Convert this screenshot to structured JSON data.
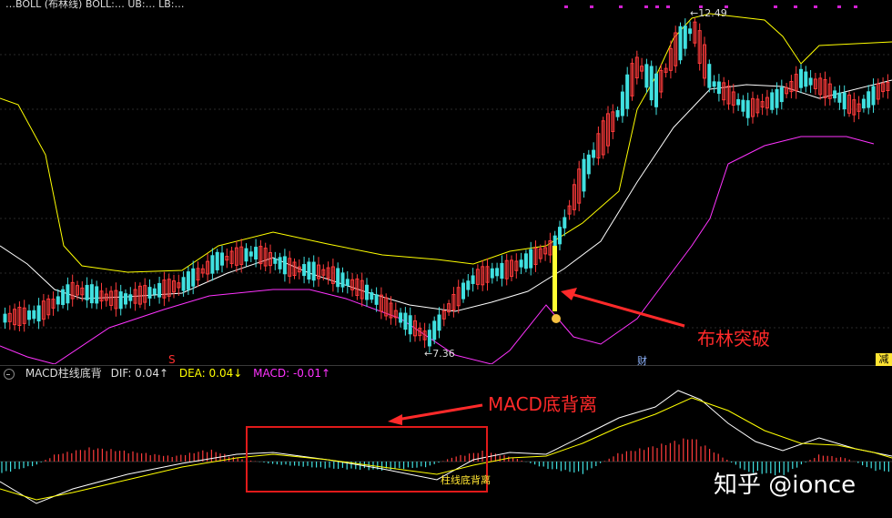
{
  "legend": {
    "text": "…BOLL (布林线) BOLL:… UB:… LB:…",
    "colors": {
      "mid": "#ffffff",
      "ub": "#ffff00",
      "lb": "#ff33ff"
    }
  },
  "main": {
    "high_label": "12.49",
    "low_label": "7.36",
    "axis_marks": [
      "S",
      "财",
      "减"
    ]
  },
  "macd_header": {
    "title": "MACD柱线底背",
    "dif_label": "DIF: 0.04↑",
    "dea_label": "DEA: 0.04↓",
    "macd_label": "MACD: -0.01↑"
  },
  "annotations": {
    "bollinger": "布林突破",
    "macd": "MACD底背离",
    "box_label": "柱线底背离"
  },
  "watermark": "知乎 @ionce",
  "colors": {
    "up": "#ff3b3b",
    "down": "#40e0e0",
    "annot": "#ff2a2a",
    "highlight": "#ffff33"
  }
}
